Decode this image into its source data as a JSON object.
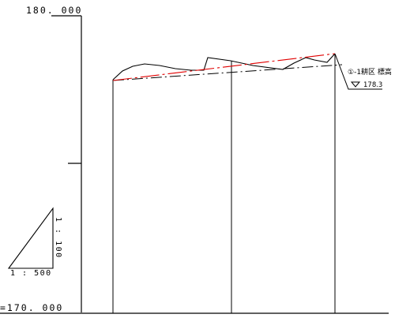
{
  "datum": {
    "top_label": "180. 000",
    "bottom_label": "=170. 000"
  },
  "scale": {
    "horizontal": "1 : 500",
    "vertical": "1 : 100"
  },
  "plot": {
    "name": "①-1耕区 標高",
    "elevation": "178.3"
  },
  "colors": {
    "ink": "#000000",
    "design_line": "#e00000"
  }
}
